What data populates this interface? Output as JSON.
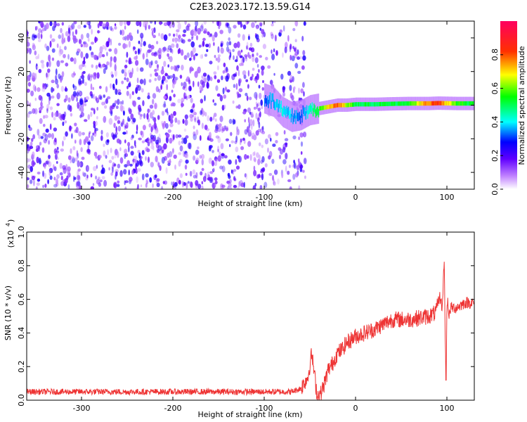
{
  "title": "C2E3.2023.172.13.59.G14",
  "chart_data": [
    {
      "type": "heatmap",
      "xlabel": "Height of straight line (km)",
      "ylabel": "Frequency (Hz)",
      "xlim": [
        -360,
        130
      ],
      "ylim": [
        -50,
        50
      ],
      "x_ticks": [
        -300,
        -200,
        -100,
        0,
        100
      ],
      "y_ticks": [
        -40,
        -20,
        0,
        20,
        40
      ],
      "colorbar": {
        "label": "Normalized spectral amplitude",
        "range": [
          0,
          1
        ],
        "ticks": [
          0.0,
          0.2,
          0.4,
          0.6,
          0.8
        ],
        "colormap": [
          "#ffffff",
          "#8000ff",
          "#0000ff",
          "#00ffff",
          "#00ff00",
          "#ffff00",
          "#ff0000",
          "#ff00ff"
        ]
      },
      "noise_region": {
        "x_range": [
          -360,
          -55
        ],
        "level": 0.15
      },
      "signal_track": [
        {
          "x": -100,
          "freq": 4,
          "amp": 0.35
        },
        {
          "x": -90,
          "freq": 2,
          "amp": 0.4
        },
        {
          "x": -80,
          "freq": -4,
          "amp": 0.45
        },
        {
          "x": -70,
          "freq": -7,
          "amp": 0.4
        },
        {
          "x": -60,
          "freq": -6,
          "amp": 0.35
        },
        {
          "x": -50,
          "freq": -3,
          "amp": 0.45
        },
        {
          "x": -40,
          "freq": -2,
          "amp": 0.6
        },
        {
          "x": -30,
          "freq": -1,
          "amp": 0.75
        },
        {
          "x": -20,
          "freq": 0,
          "amp": 0.85
        },
        {
          "x": -10,
          "freq": 0,
          "amp": 0.7
        },
        {
          "x": 0,
          "freq": 0.5,
          "amp": 0.55
        },
        {
          "x": 20,
          "freq": 0.5,
          "amp": 0.55
        },
        {
          "x": 40,
          "freq": 0.8,
          "amp": 0.55
        },
        {
          "x": 60,
          "freq": 1,
          "amp": 0.6
        },
        {
          "x": 80,
          "freq": 1,
          "amp": 0.85
        },
        {
          "x": 90,
          "freq": 1.2,
          "amp": 0.9
        },
        {
          "x": 110,
          "freq": 1,
          "amp": 0.6
        },
        {
          "x": 130,
          "freq": 1,
          "amp": 0.55
        }
      ]
    },
    {
      "type": "line",
      "xlabel": "Height of straight line (km)",
      "ylabel": "SNR (10 * v/v)",
      "y_multiplier_label": "(x10",
      "y_multiplier_exp": "4",
      "xlim": [
        -360,
        130
      ],
      "ylim": [
        0,
        1.0
      ],
      "x_ticks": [
        -300,
        -200,
        -100,
        0,
        100
      ],
      "y_ticks": [
        0.0,
        0.2,
        0.4,
        0.6,
        0.8,
        1.0
      ],
      "color": "#ee3333",
      "series": [
        {
          "x": [
            -360,
            -300,
            -250,
            -200,
            -150,
            -100,
            -70,
            -60,
            -52,
            -48,
            -45,
            -42,
            -38,
            -34,
            -30,
            -25,
            -20,
            -15,
            -10,
            -5,
            0,
            10,
            20,
            30,
            40,
            50,
            60,
            70,
            80,
            88,
            92,
            95,
            97,
            99,
            100,
            101,
            102,
            104,
            110,
            120,
            130
          ],
          "y": [
            0.05,
            0.05,
            0.05,
            0.05,
            0.05,
            0.05,
            0.05,
            0.07,
            0.14,
            0.28,
            0.15,
            0.03,
            0.04,
            0.1,
            0.18,
            0.22,
            0.28,
            0.3,
            0.34,
            0.36,
            0.38,
            0.4,
            0.42,
            0.45,
            0.48,
            0.48,
            0.48,
            0.49,
            0.5,
            0.52,
            0.62,
            0.55,
            0.85,
            0.05,
            0.55,
            0.62,
            0.48,
            0.55,
            0.55,
            0.58,
            0.58
          ]
        }
      ]
    }
  ]
}
